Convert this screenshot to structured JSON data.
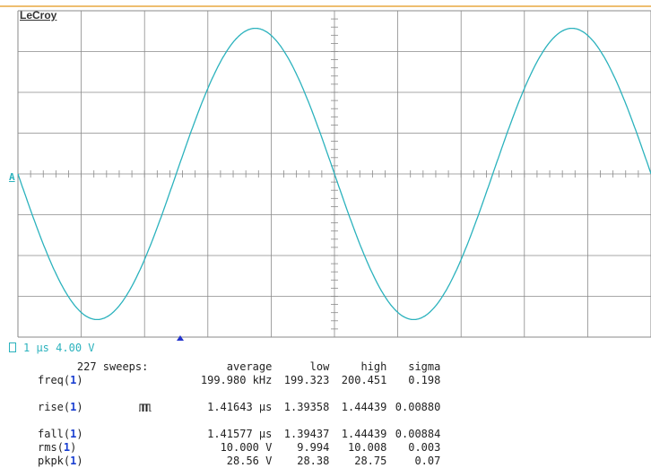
{
  "brand": "LeCroy",
  "channel_marker": "A",
  "status": {
    "channel_label": "A",
    "timebase": "1 µs",
    "volts_per_div": "4.00 V"
  },
  "measurements": {
    "sweeps_label": "227 sweeps:",
    "headers": {
      "average": "average",
      "low": "low",
      "high": "high",
      "sigma": "sigma"
    },
    "rows": [
      {
        "param": "freq",
        "channel": "1",
        "average": "199.980 kHz",
        "low": "199.323",
        "high": "200.451",
        "sigma": "0.198"
      },
      {
        "param": "rise",
        "channel": "1",
        "average": "1.41643 µs",
        "low": "1.39358",
        "high": "1.44439",
        "sigma": "0.00880"
      },
      {
        "param": "fall",
        "channel": "1",
        "average": "1.41577 µs",
        "low": "1.39437",
        "high": "1.44439",
        "sigma": "0.00884"
      },
      {
        "param": "rms",
        "channel": "1",
        "average": "10.000 V",
        "low": "9.994",
        "high": "10.008",
        "sigma": "0.003"
      },
      {
        "param": "pkpk",
        "channel": "1",
        "average": "28.56 V",
        "low": "28.38",
        "high": "28.75",
        "sigma": "0.07"
      }
    ]
  },
  "colors": {
    "trace": "#2bb2bd",
    "grid": "#8a8a8a",
    "top_rule": "#e8a840",
    "channel_ref": "#1a3fd1",
    "trigger": "#2233cc"
  },
  "waveform": {
    "type": "sine",
    "frequency_khz": 199.98,
    "amplitude_v": 14.28,
    "phase_at_left_edge": "falling zero-crossing"
  }
}
